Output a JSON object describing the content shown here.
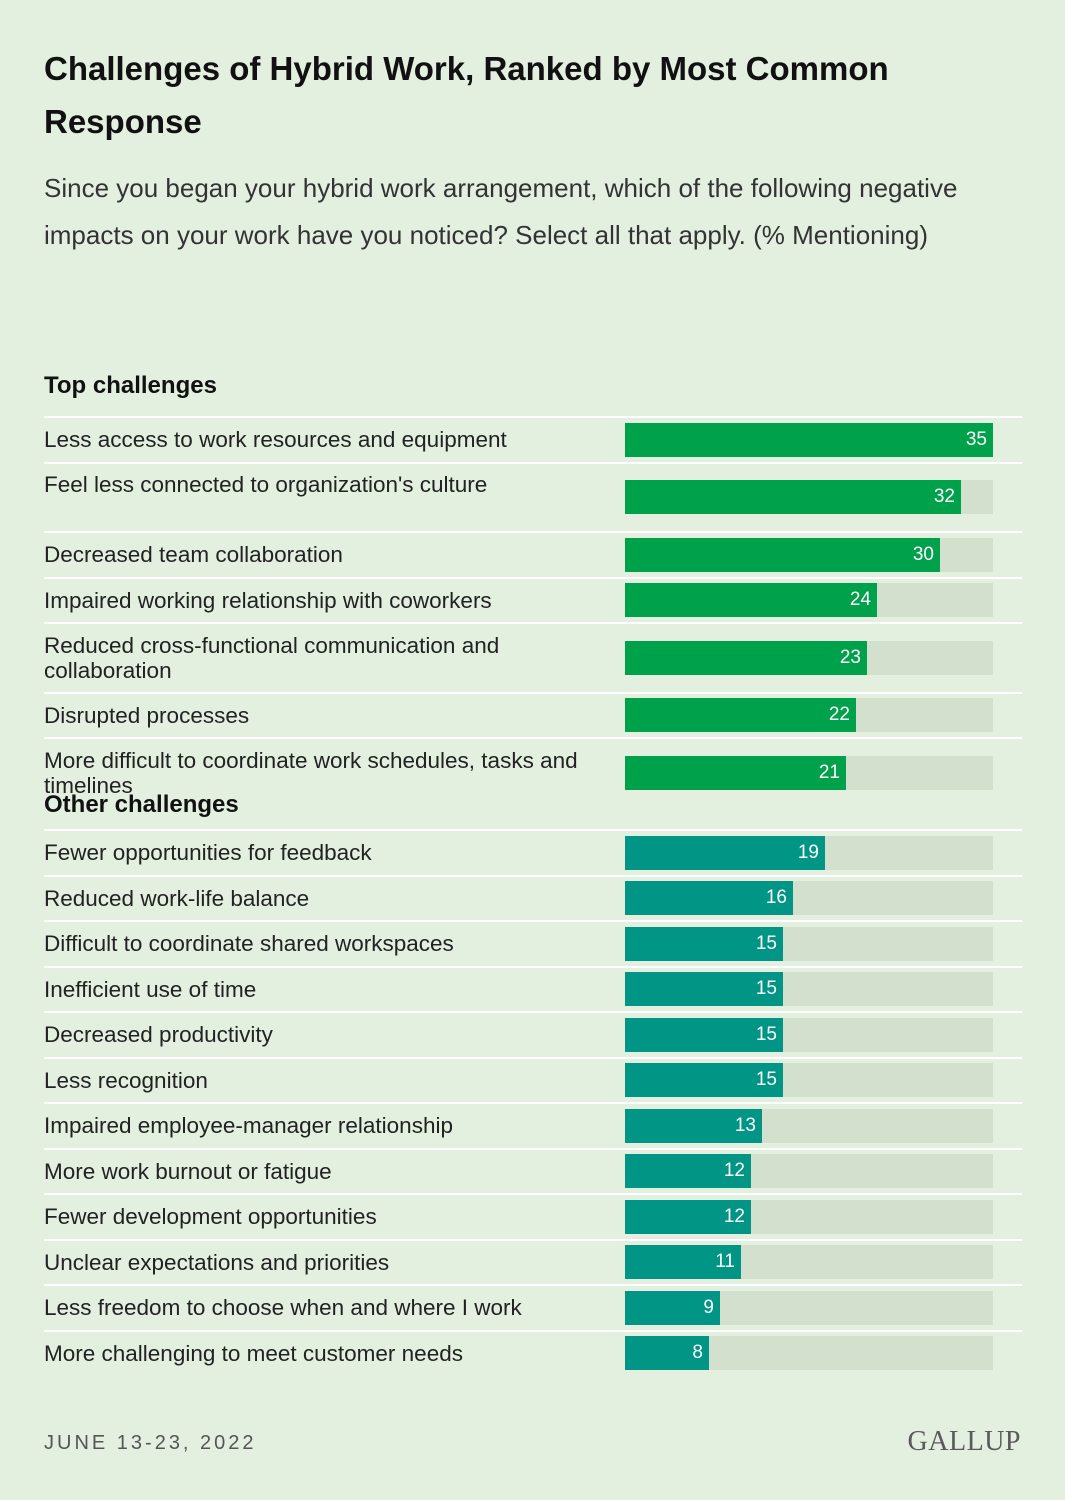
{
  "title": "Challenges of Hybrid Work, Ranked by Most Common Response",
  "subtitle": "Since you began your hybrid work arrangement, which of the following negative impacts on your work have you noticed? Select all that apply. (% Mentioning)",
  "footer": {
    "date": "JUNE 13-23, 2022",
    "logo": "GALLUP"
  },
  "colors": {
    "background": "#e3f0e0",
    "top": "#00a14b",
    "other": "#009584",
    "track": "#d3e0ce"
  },
  "chart_data": {
    "type": "bar",
    "orientation": "horizontal",
    "xlim": [
      0,
      35
    ],
    "grid": false,
    "groups": [
      {
        "name": "Top challenges",
        "color": "#00a14b",
        "categories": [
          "Less access to work resources and equipment",
          "Feel less connected to organization's culture",
          "Decreased team collaboration",
          "Impaired working relationship with coworkers",
          "Reduced cross-functional communication and collaboration",
          "Disrupted processes",
          "More difficult to coordinate work schedules, tasks and timelines"
        ],
        "values": [
          35,
          32,
          30,
          24,
          23,
          22,
          21
        ]
      },
      {
        "name": "Other challenges",
        "color": "#009584",
        "categories": [
          "Fewer opportunities for feedback",
          "Reduced work-life balance",
          "Difficult to coordinate shared workspaces",
          "Inefficient use of time",
          "Decreased productivity",
          "Less recognition",
          "Impaired employee-manager relationship",
          "More work burnout or fatigue",
          "Fewer development opportunities",
          "Unclear expectations and priorities",
          "Less freedom to choose when and where I work",
          "More challenging to meet customer needs"
        ],
        "values": [
          19,
          16,
          15,
          15,
          15,
          15,
          13,
          12,
          12,
          11,
          9,
          8
        ]
      }
    ]
  }
}
